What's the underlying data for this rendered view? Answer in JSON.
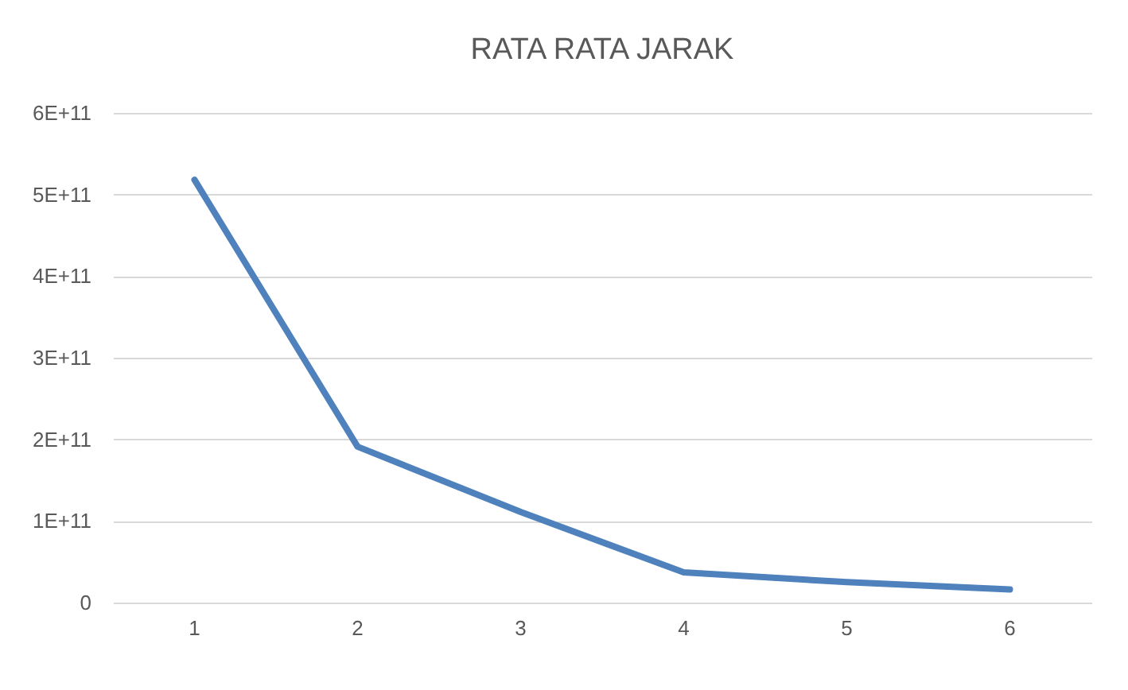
{
  "chart_data": {
    "type": "line",
    "title": "RATA RATA JARAK",
    "categories": [
      "1",
      "2",
      "3",
      "4",
      "5",
      "6"
    ],
    "series": [
      {
        "color": "#4f81bd",
        "values": [
          518000000000,
          191000000000,
          111000000000,
          37000000000,
          25000000000,
          16000000000
        ]
      }
    ],
    "ylim": [
      0,
      600000000000
    ],
    "yticks": [
      {
        "value": 0,
        "label": "0"
      },
      {
        "value": 100000000000,
        "label": "1E+11"
      },
      {
        "value": 200000000000,
        "label": "2E+11"
      },
      {
        "value": 300000000000,
        "label": "3E+11"
      },
      {
        "value": 400000000000,
        "label": "4E+11"
      },
      {
        "value": 500000000000,
        "label": "5E+11"
      },
      {
        "value": 600000000000,
        "label": "6E+11"
      }
    ],
    "grid": "y",
    "marker": "none",
    "line_style": "solid"
  }
}
